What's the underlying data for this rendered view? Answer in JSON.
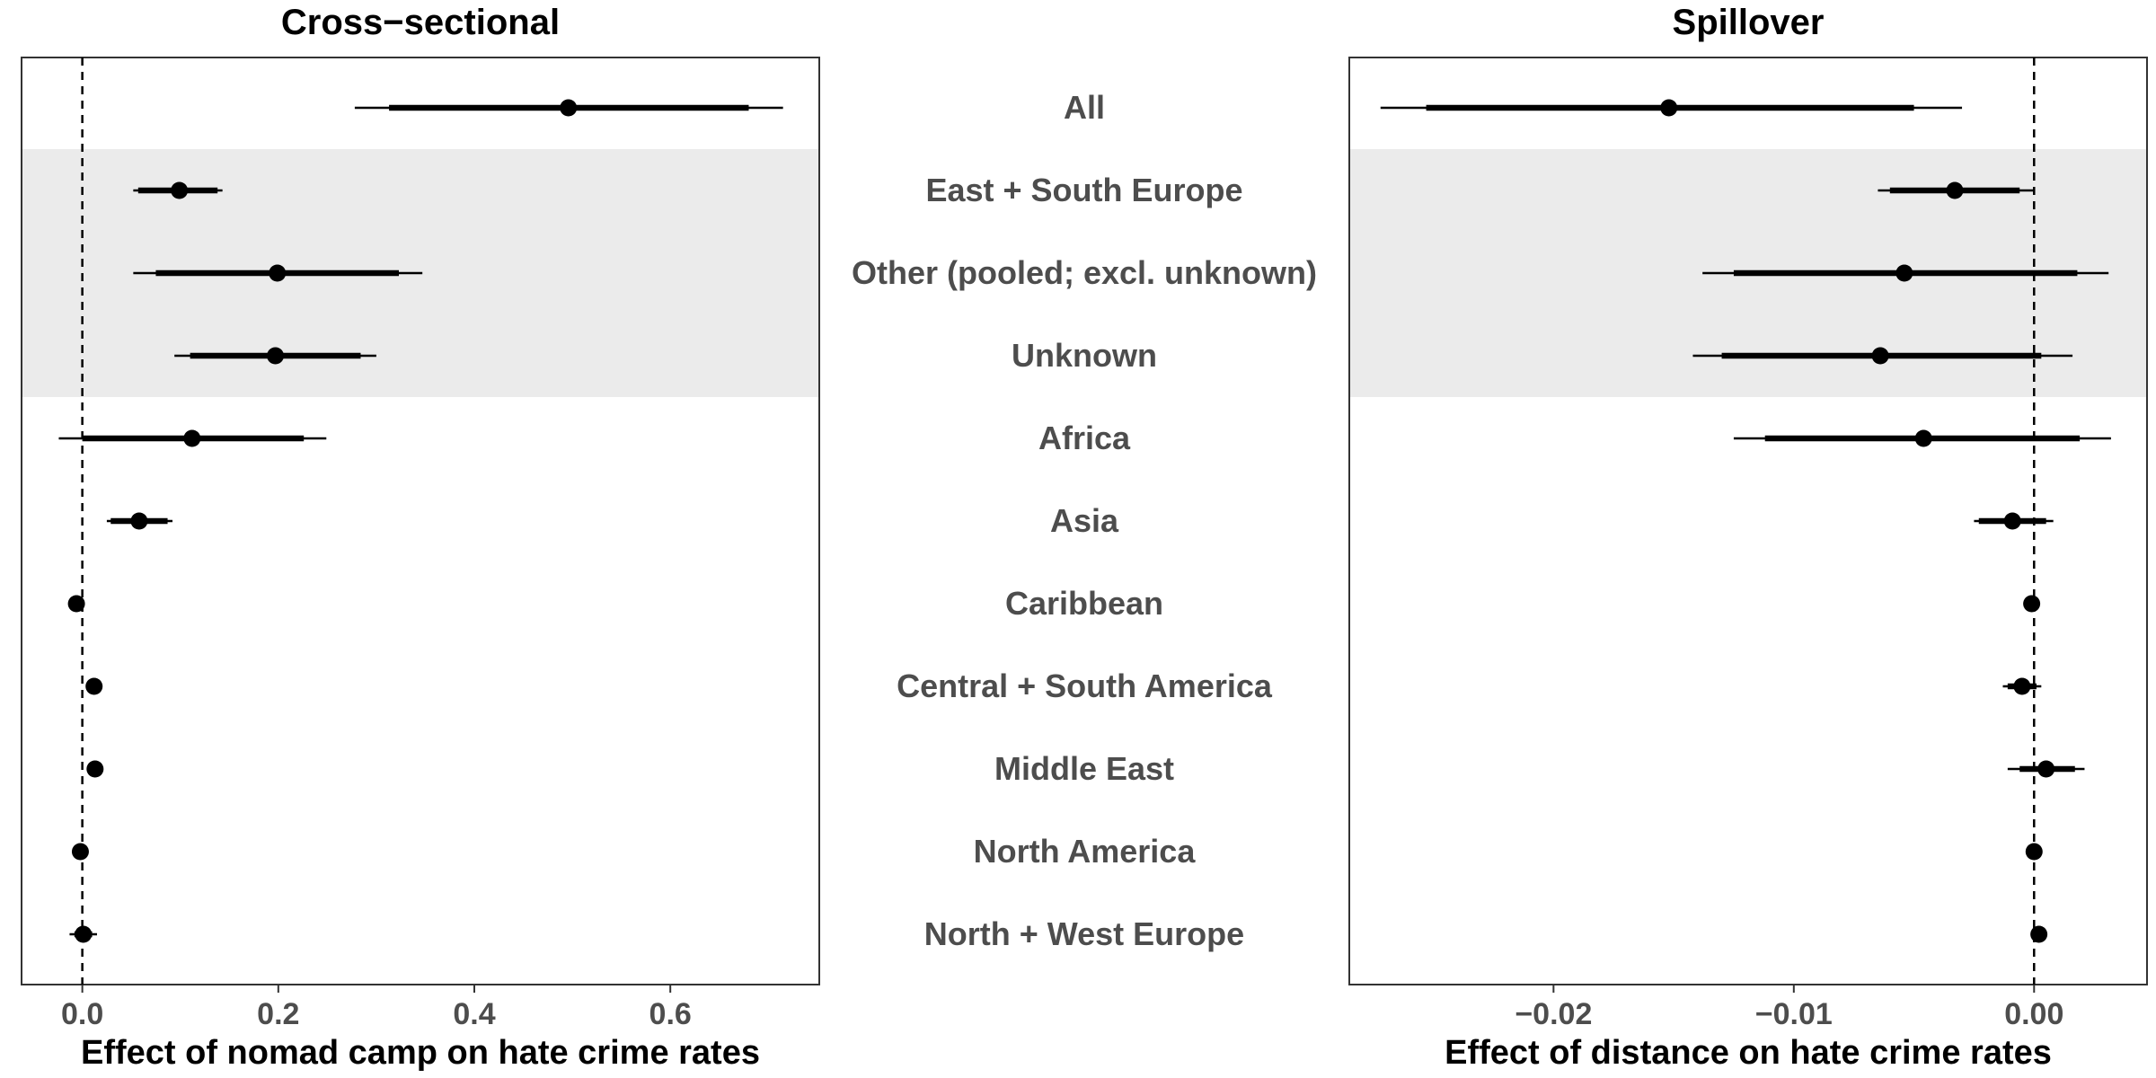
{
  "chart_data": {
    "type": "forest-plot",
    "categories": [
      "All",
      "East + South Europe",
      "Other (pooled; excl. unknown)",
      "Unknown",
      "Africa",
      "Asia",
      "Caribbean",
      "Central + South America",
      "Middle East",
      "North America",
      "North + West Europe"
    ],
    "highlighted_categories": [
      "East + South Europe",
      "Other (pooled; excl. unknown)",
      "Unknown"
    ],
    "highlight_color": "#ebebeb",
    "panels": [
      {
        "title": "Cross−sectional",
        "xlabel": "Effect of nomad camp on hate crime rates",
        "xlim": [
          -0.062,
          0.752
        ],
        "xticks": [
          0.0,
          0.2,
          0.4,
          0.6
        ],
        "xtick_labels": [
          "0.0",
          "0.2",
          "0.4",
          "0.6"
        ],
        "reference_line": 0.0,
        "estimates": [
          {
            "category": "All",
            "estimate": 0.496,
            "ci_inner": [
              0.313,
              0.68
            ],
            "ci_outer": [
              0.278,
              0.715
            ]
          },
          {
            "category": "East + South Europe",
            "estimate": 0.099,
            "ci_inner": [
              0.057,
              0.138
            ],
            "ci_outer": [
              0.052,
              0.143
            ]
          },
          {
            "category": "Other (pooled; excl. unknown)",
            "estimate": 0.199,
            "ci_inner": [
              0.075,
              0.323
            ],
            "ci_outer": [
              0.052,
              0.347
            ]
          },
          {
            "category": "Unknown",
            "estimate": 0.197,
            "ci_inner": [
              0.11,
              0.284
            ],
            "ci_outer": [
              0.094,
              0.3
            ]
          },
          {
            "category": "Africa",
            "estimate": 0.112,
            "ci_inner": [
              0.0,
              0.226
            ],
            "ci_outer": [
              -0.024,
              0.249
            ]
          },
          {
            "category": "Asia",
            "estimate": 0.058,
            "ci_inner": [
              0.029,
              0.087
            ],
            "ci_outer": [
              0.025,
              0.092
            ]
          },
          {
            "category": "Caribbean",
            "estimate": -0.006,
            "ci_inner": [
              -0.008,
              -0.004
            ],
            "ci_outer": [
              -0.009,
              -0.003
            ]
          },
          {
            "category": "Central + South America",
            "estimate": 0.012,
            "ci_inner": [
              0.006,
              0.018
            ],
            "ci_outer": [
              0.004,
              0.02
            ]
          },
          {
            "category": "Middle East",
            "estimate": 0.013,
            "ci_inner": [
              0.007,
              0.019
            ],
            "ci_outer": [
              0.005,
              0.021
            ]
          },
          {
            "category": "North America",
            "estimate": -0.002,
            "ci_inner": [
              -0.004,
              0.0
            ],
            "ci_outer": [
              -0.005,
              0.001
            ]
          },
          {
            "category": "North + West Europe",
            "estimate": 0.001,
            "ci_inner": [
              -0.008,
              0.01
            ],
            "ci_outer": [
              -0.013,
              0.015
            ]
          }
        ]
      },
      {
        "title": "Spillover",
        "xlabel": "Effect of distance on hate crime rates",
        "xlim": [
          -0.0285,
          0.0047
        ],
        "xticks": [
          -0.02,
          -0.01,
          0.0
        ],
        "xtick_labels": [
          "−0.02",
          "−0.01",
          "0.00"
        ],
        "reference_line": 0.0,
        "estimates": [
          {
            "category": "All",
            "estimate": -0.0152,
            "ci_inner": [
              -0.0253,
              -0.005
            ],
            "ci_outer": [
              -0.0272,
              -0.003
            ]
          },
          {
            "category": "East + South Europe",
            "estimate": -0.0033,
            "ci_inner": [
              -0.006,
              -0.0006
            ],
            "ci_outer": [
              -0.0065,
              0.0
            ]
          },
          {
            "category": "Other (pooled; excl. unknown)",
            "estimate": -0.0054,
            "ci_inner": [
              -0.0125,
              0.0018
            ],
            "ci_outer": [
              -0.0138,
              0.0031
            ]
          },
          {
            "category": "Unknown",
            "estimate": -0.0064,
            "ci_inner": [
              -0.013,
              0.0003
            ],
            "ci_outer": [
              -0.0142,
              0.0016
            ]
          },
          {
            "category": "Africa",
            "estimate": -0.0046,
            "ci_inner": [
              -0.0112,
              0.0019
            ],
            "ci_outer": [
              -0.0125,
              0.0032
            ]
          },
          {
            "category": "Asia",
            "estimate": -0.0009,
            "ci_inner": [
              -0.0023,
              0.0005
            ],
            "ci_outer": [
              -0.0025,
              0.0008
            ]
          },
          {
            "category": "Caribbean",
            "estimate": -0.0001,
            "ci_inner": [
              -0.0002,
              0.0
            ],
            "ci_outer": [
              -0.0003,
              0.0001
            ]
          },
          {
            "category": "Central + South America",
            "estimate": -0.0005,
            "ci_inner": [
              -0.0011,
              0.0001
            ],
            "ci_outer": [
              -0.0013,
              0.0003
            ]
          },
          {
            "category": "Middle East",
            "estimate": 0.0005,
            "ci_inner": [
              -0.0006,
              0.0017
            ],
            "ci_outer": [
              -0.0011,
              0.0021
            ]
          },
          {
            "category": "North America",
            "estimate": 0.0,
            "ci_inner": [
              -0.0001,
              0.0001
            ],
            "ci_outer": [
              -0.0002,
              0.0002
            ]
          },
          {
            "category": "North + West Europe",
            "estimate": 0.0002,
            "ci_inner": [
              0.0001,
              0.0003
            ],
            "ci_outer": [
              0.0,
              0.0004
            ]
          }
        ]
      }
    ]
  }
}
